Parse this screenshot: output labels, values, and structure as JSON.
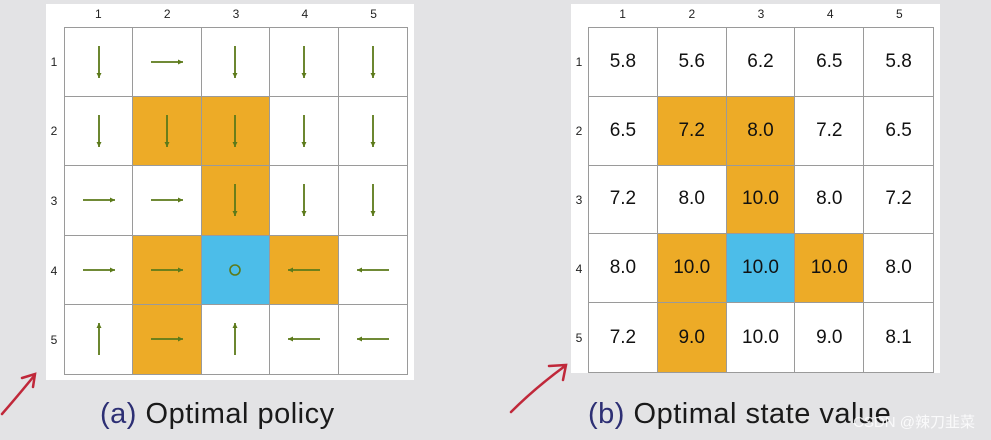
{
  "panel_a": {
    "caption_tag": "(a)",
    "caption_text": " Optimal policy",
    "col_labels": [
      "1",
      "2",
      "3",
      "4",
      "5"
    ],
    "row_labels": [
      "1",
      "2",
      "3",
      "4",
      "5"
    ],
    "cells": [
      [
        "down",
        "right",
        "down",
        "down",
        "down"
      ],
      [
        "down",
        "down",
        "down",
        "down",
        "down"
      ],
      [
        "right",
        "right",
        "down",
        "down",
        "down"
      ],
      [
        "right",
        "right",
        "stay",
        "left",
        "left"
      ],
      [
        "up",
        "right",
        "up",
        "left",
        "left"
      ]
    ]
  },
  "panel_b": {
    "caption_tag": "(b)",
    "caption_text": " Optimal state value",
    "col_labels": [
      "1",
      "2",
      "3",
      "4",
      "5"
    ],
    "row_labels": [
      "1",
      "2",
      "3",
      "4",
      "5"
    ],
    "values": [
      [
        "5.8",
        "5.6",
        "6.2",
        "6.5",
        "5.8"
      ],
      [
        "6.5",
        "7.2",
        "8.0",
        "7.2",
        "6.5"
      ],
      [
        "7.2",
        "8.0",
        "10.0",
        "8.0",
        "7.2"
      ],
      [
        "8.0",
        "10.0",
        "10.0",
        "10.0",
        "8.0"
      ],
      [
        "7.2",
        "9.0",
        "10.0",
        "9.0",
        "8.1"
      ]
    ]
  },
  "cell_types": [
    [
      "normal",
      "normal",
      "normal",
      "normal",
      "normal"
    ],
    [
      "normal",
      "forbidden",
      "forbidden",
      "normal",
      "normal"
    ],
    [
      "normal",
      "normal",
      "forbidden",
      "normal",
      "normal"
    ],
    [
      "normal",
      "forbidden",
      "target",
      "forbidden",
      "normal"
    ],
    [
      "normal",
      "forbidden",
      "normal",
      "normal",
      "normal"
    ]
  ],
  "colors": {
    "forbidden": "#edab27",
    "target": "#4cbde9",
    "arrow": "#5c7a1a",
    "caption_tag": "#2d2f74",
    "pen": "#c0283a"
  },
  "watermark": "CSDN @辣刀韭菜"
}
